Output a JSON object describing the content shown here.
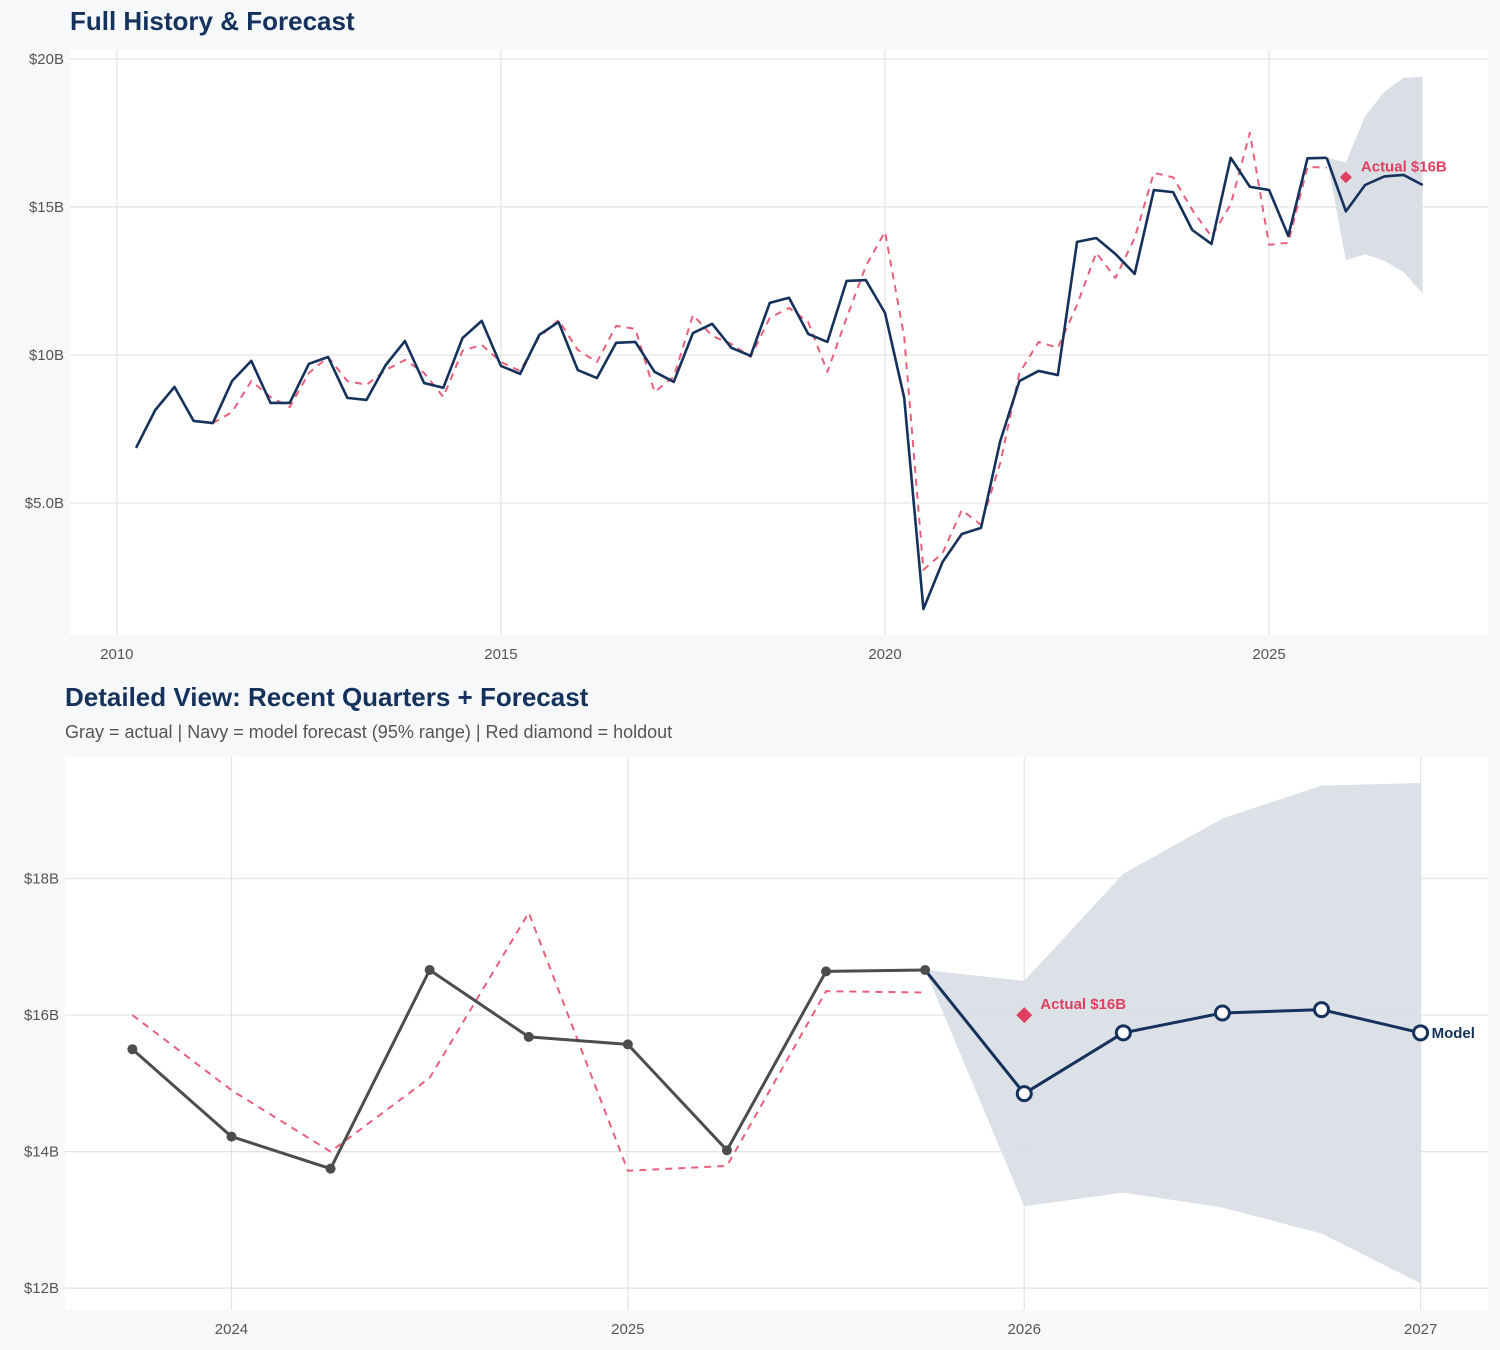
{
  "chart_data": [
    {
      "type": "line",
      "title": "Full History & Forecast",
      "xlim": [
        2009.39,
        2027.85
      ],
      "ylim": [
        0.54,
        20.3
      ],
      "x_ticks": [
        2010,
        2015,
        2020,
        2025
      ],
      "x_tick_labels": [
        "2010",
        "2015",
        "2020",
        "2025"
      ],
      "y_ticks": [
        5,
        10,
        15,
        20
      ],
      "y_tick_labels": [
        "$5.0B",
        "$10B",
        "$15B",
        "$20B"
      ],
      "grid": true,
      "colors": {
        "actual": "#14325c",
        "fitted": "#e8607a",
        "band": "#dadfe6",
        "holdout": "#e0405f"
      },
      "series": [
        {
          "role": "actual",
          "x_start": 2010.25,
          "x_step": 0.25,
          "values": [
            6.86,
            8.14,
            8.92,
            7.77,
            7.7,
            9.12,
            9.8,
            8.38,
            8.38,
            9.7,
            9.93,
            8.55,
            8.48,
            9.66,
            10.47,
            9.05,
            8.89,
            10.57,
            11.15,
            9.63,
            9.36,
            10.68,
            11.11,
            9.49,
            9.22,
            10.41,
            10.44,
            9.43,
            9.09,
            10.74,
            11.05,
            10.24,
            9.97,
            11.76,
            11.93,
            10.71,
            10.44,
            12.5,
            12.53,
            11.42,
            8.55,
            1.42,
            3.01,
            3.95,
            4.16,
            7.09,
            9.12,
            9.46,
            9.32,
            13.82,
            13.95,
            13.41,
            12.74,
            15.57,
            15.5,
            14.22,
            13.75,
            16.66,
            15.68,
            15.57,
            14.02,
            16.64,
            16.66
          ]
        },
        {
          "role": "fitted",
          "x_start": 2011.25,
          "x_step": 0.25,
          "values": [
            7.7,
            8.07,
            9.12,
            8.58,
            8.24,
            9.39,
            9.93,
            9.12,
            8.99,
            9.49,
            9.83,
            9.39,
            8.58,
            10.14,
            10.34,
            9.76,
            9.46,
            10.61,
            11.18,
            10.17,
            9.76,
            10.98,
            10.88,
            8.75,
            9.26,
            11.35,
            10.64,
            10.37,
            9.93,
            11.25,
            11.59,
            11.11,
            9.43,
            11.25,
            13.0,
            14.16,
            10.61,
            2.74,
            3.31,
            4.76,
            4.26,
            6.35,
            9.39,
            10.44,
            10.24,
            11.69,
            13.45,
            12.6,
            13.95,
            16.15,
            16.0,
            14.9,
            14.0,
            15.08,
            17.5,
            13.72,
            13.79,
            16.35,
            16.33
          ]
        },
        {
          "role": "forecast",
          "x": [
            2025.75,
            2026.0,
            2026.25,
            2026.5,
            2026.75,
            2027.0
          ],
          "values": [
            16.66,
            14.85,
            15.74,
            16.03,
            16.08,
            15.74
          ],
          "lower": [
            16.66,
            13.2,
            13.4,
            13.18,
            12.8,
            12.07
          ],
          "upper": [
            16.66,
            16.5,
            18.07,
            18.88,
            19.36,
            19.4
          ]
        }
      ],
      "holdout": {
        "x": 2026.0,
        "y": 16.0,
        "label": "Actual $16B"
      }
    },
    {
      "type": "line",
      "title": "Detailed View: Recent Quarters + Forecast",
      "subtitle": "Gray = actual  |  Navy = model forecast (95% range)  |  Red diamond = holdout",
      "xlim": [
        2023.58,
        2027.17
      ],
      "ylim": [
        11.68,
        19.78
      ],
      "x_ticks": [
        2024,
        2025,
        2026,
        2027
      ],
      "x_tick_labels": [
        "2024",
        "2025",
        "2026",
        "2027"
      ],
      "y_ticks": [
        12,
        14,
        16,
        18
      ],
      "y_tick_labels": [
        "$12B",
        "$14B",
        "$16B",
        "$18B"
      ],
      "grid": true,
      "colors": {
        "actual": "#4d4d4d",
        "fitted": "#e8607a",
        "forecast": "#14325c",
        "band": "#dadfe6",
        "holdout": "#e0405f"
      },
      "series": [
        {
          "role": "actual",
          "x": [
            2023.75,
            2024.0,
            2024.25,
            2024.5,
            2024.75,
            2025.0,
            2025.25,
            2025.5,
            2025.75
          ],
          "values": [
            15.5,
            14.22,
            13.75,
            16.66,
            15.68,
            15.57,
            14.02,
            16.64,
            16.66
          ]
        },
        {
          "role": "fitted",
          "x": [
            2023.75,
            2024.0,
            2024.25,
            2024.5,
            2024.75,
            2025.0,
            2025.25,
            2025.5,
            2025.75
          ],
          "values": [
            16.0,
            14.9,
            14.0,
            15.08,
            17.5,
            13.72,
            13.79,
            16.35,
            16.33
          ]
        },
        {
          "role": "forecast",
          "name": "Model",
          "x": [
            2025.75,
            2026.0,
            2026.25,
            2026.5,
            2026.75,
            2027.0
          ],
          "values": [
            16.66,
            14.85,
            15.74,
            16.03,
            16.08,
            15.74
          ],
          "lower": [
            16.66,
            13.2,
            13.4,
            13.18,
            12.8,
            12.07
          ],
          "upper": [
            16.66,
            16.5,
            18.07,
            18.88,
            19.36,
            19.4
          ]
        }
      ],
      "holdout": {
        "x": 2026.0,
        "y": 16.0,
        "label": "Actual $16B"
      },
      "end_label": "Model"
    }
  ]
}
